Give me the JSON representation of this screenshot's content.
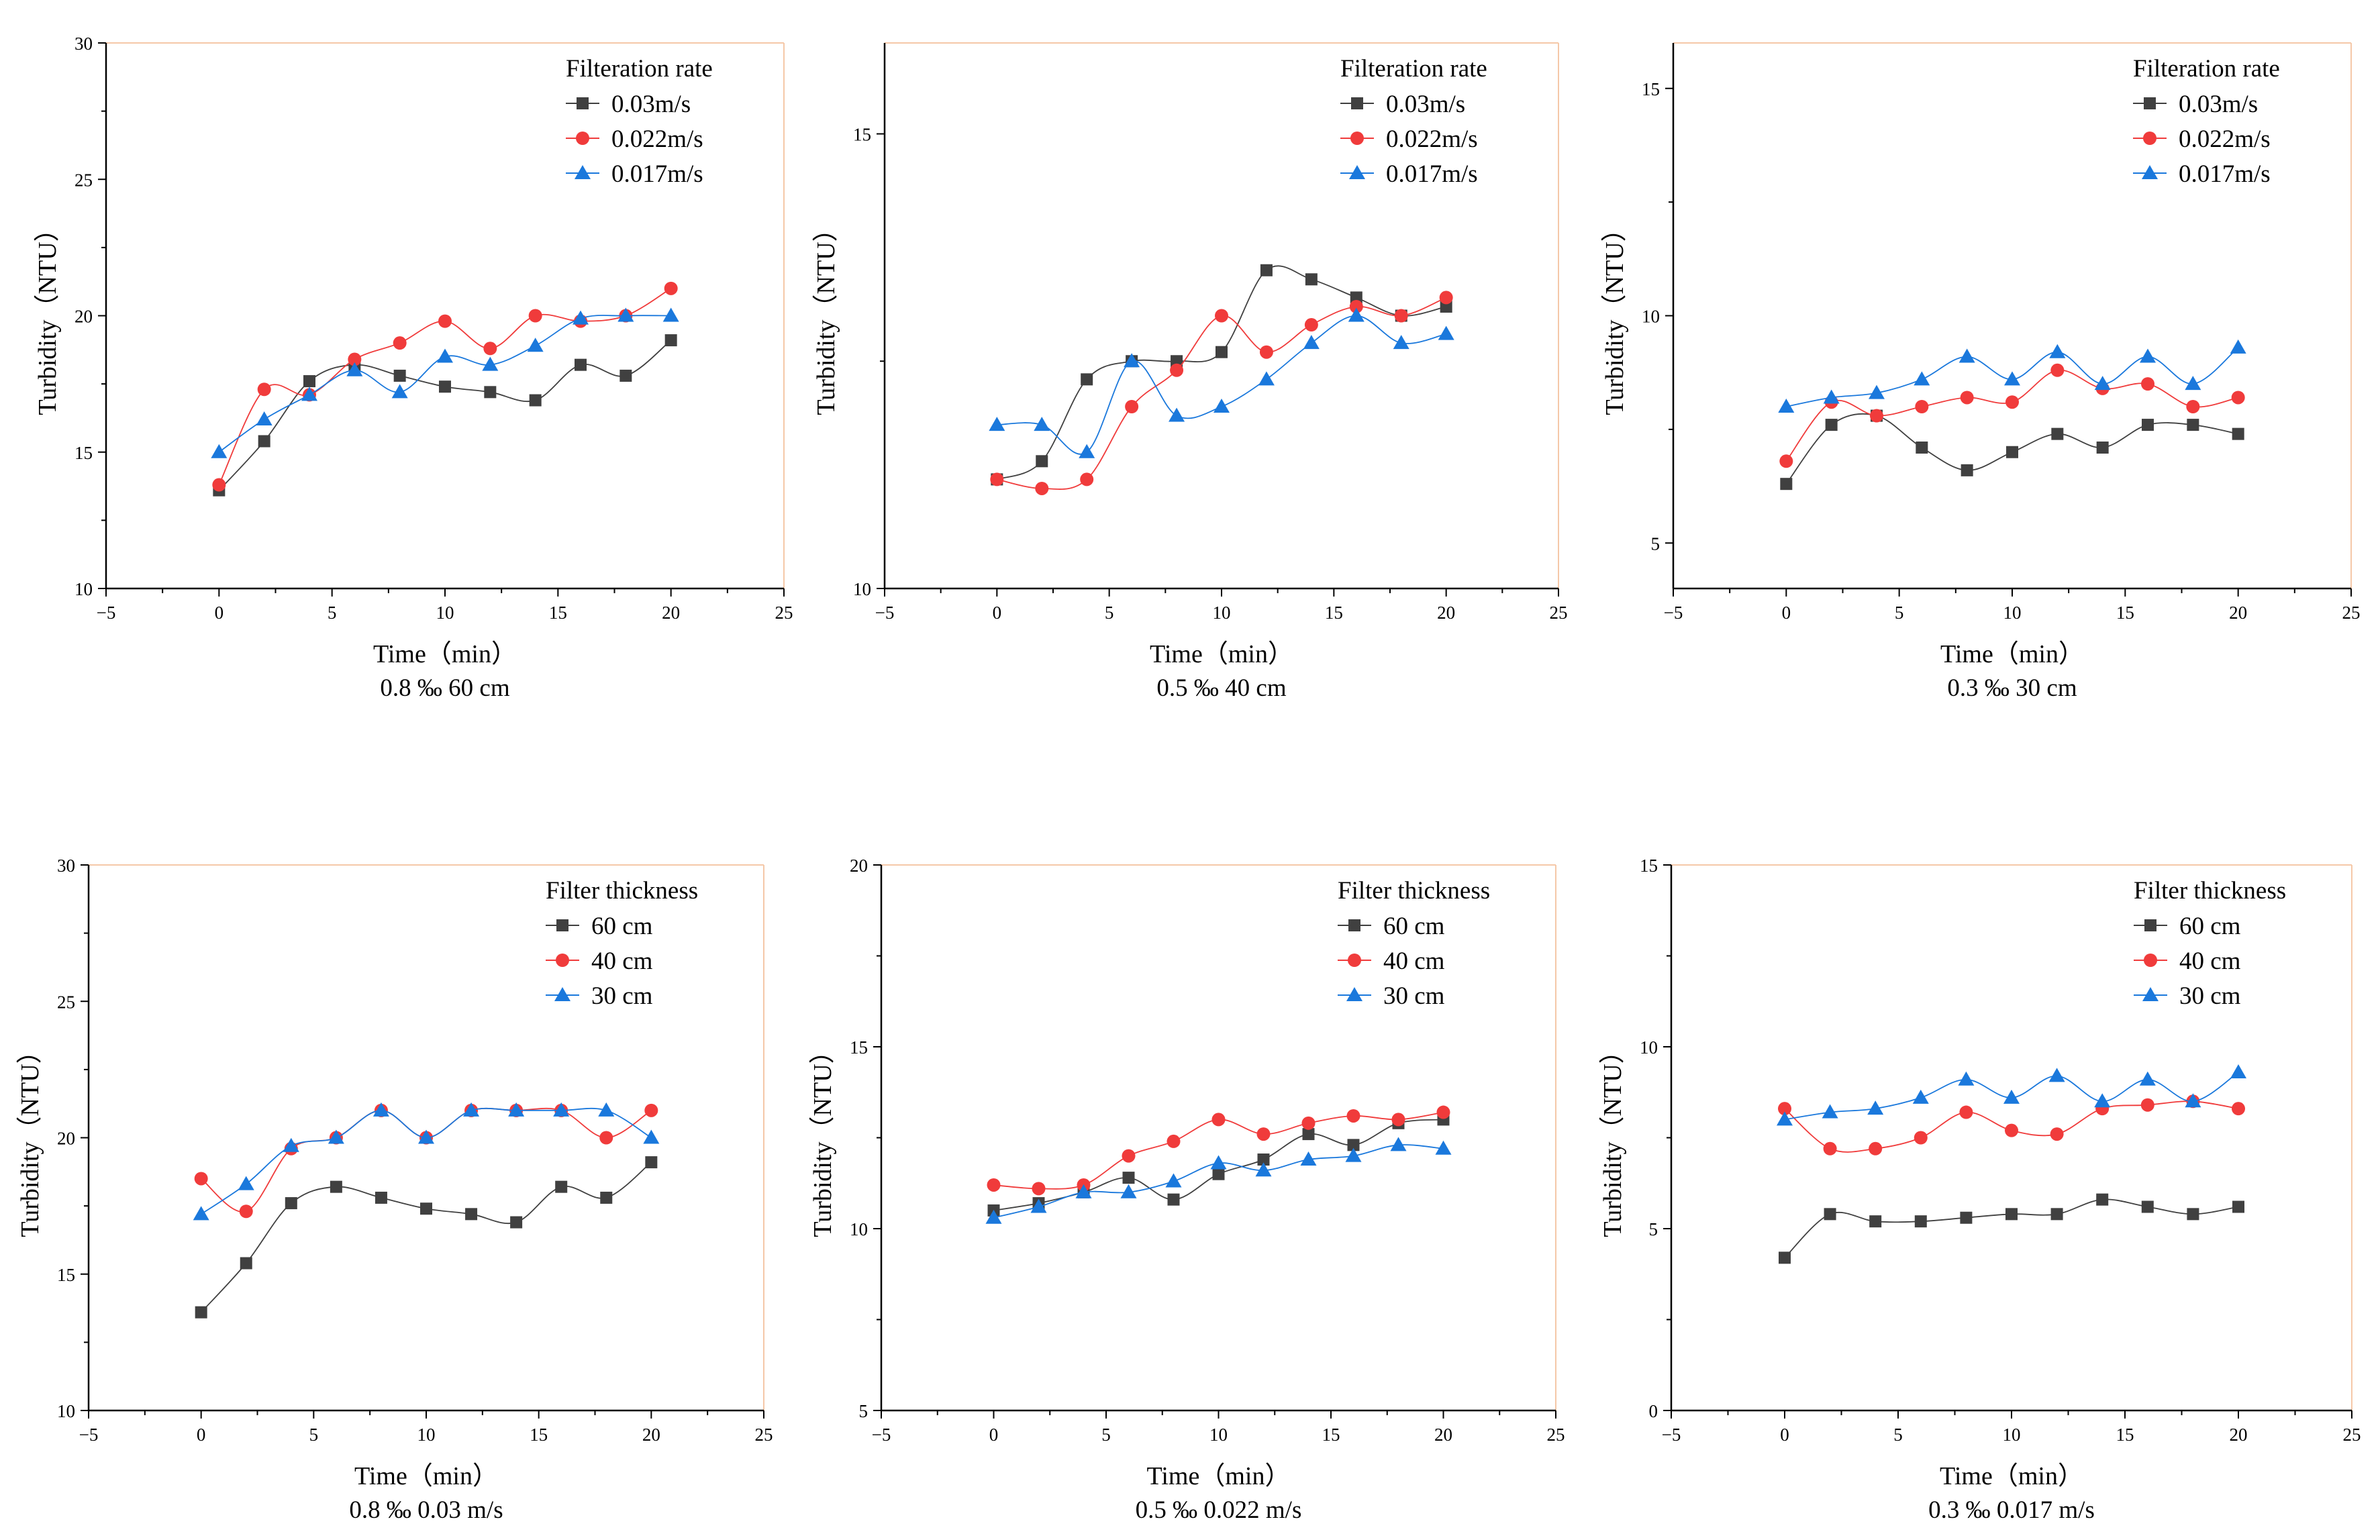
{
  "figure": {
    "palette": {
      "series_1": "#404040",
      "series_2": "#f03b3b",
      "series_3": "#1a78dc",
      "frame_accent": "#f5c8a8"
    }
  },
  "chart_data": [
    {
      "type": "line",
      "caption": "0.8 ‰   60 cm",
      "xlabel": "Time（min）",
      "ylabel": "Turbidity（NTU）",
      "xlim": [
        -5,
        25
      ],
      "ylim": [
        10,
        30
      ],
      "xticks": [
        -5,
        0,
        5,
        10,
        15,
        20,
        25
      ],
      "yticks": [
        10,
        15,
        20,
        25,
        30
      ],
      "legend_title": "Filteration rate",
      "legend_position": "top-right",
      "x": [
        0,
        2,
        4,
        6,
        8,
        10,
        12,
        14,
        16,
        18,
        20
      ],
      "series": [
        {
          "name": "0.03m/s",
          "marker": "square",
          "values": [
            13.6,
            15.4,
            17.6,
            18.2,
            17.8,
            17.4,
            17.2,
            16.9,
            18.2,
            17.8,
            19.1
          ]
        },
        {
          "name": "0.022m/s",
          "marker": "circle",
          "values": [
            13.8,
            17.3,
            17.1,
            18.4,
            19.0,
            19.8,
            18.8,
            20.0,
            19.8,
            20.0,
            21.0
          ]
        },
        {
          "name": "0.017m/s",
          "marker": "triangle",
          "values": [
            15.0,
            16.2,
            17.1,
            18.0,
            17.2,
            18.5,
            18.2,
            18.9,
            19.9,
            20.0,
            20.0
          ]
        }
      ]
    },
    {
      "type": "line",
      "caption": "0.5 ‰   40 cm",
      "xlabel": "Time（min）",
      "ylabel": "Turbidity（NTU）",
      "xlim": [
        -5,
        25
      ],
      "ylim": [
        10,
        16
      ],
      "xticks": [
        -5,
        0,
        5,
        10,
        15,
        20,
        25
      ],
      "yticks": [
        10,
        15
      ],
      "legend_title": "Filteration rate",
      "legend_position": "top-right",
      "x": [
        0,
        2,
        4,
        6,
        8,
        10,
        12,
        14,
        16,
        18,
        20
      ],
      "series": [
        {
          "name": "0.03m/s",
          "marker": "square",
          "values": [
            11.2,
            11.4,
            12.3,
            12.5,
            12.5,
            12.6,
            13.5,
            13.4,
            13.2,
            13.0,
            13.1
          ]
        },
        {
          "name": "0.022m/s",
          "marker": "circle",
          "values": [
            11.2,
            11.1,
            11.2,
            12.0,
            12.4,
            13.0,
            12.6,
            12.9,
            13.1,
            13.0,
            13.2
          ]
        },
        {
          "name": "0.017m/s",
          "marker": "triangle",
          "values": [
            11.8,
            11.8,
            11.5,
            12.5,
            11.9,
            12.0,
            12.3,
            12.7,
            13.0,
            12.7,
            12.8
          ]
        }
      ]
    },
    {
      "type": "line",
      "caption": "0.3 ‰   30 cm",
      "xlabel": "Time（min）",
      "ylabel": "Turbidity（NTU）",
      "xlim": [
        -5,
        25
      ],
      "ylim": [
        4,
        16
      ],
      "xticks": [
        -5,
        0,
        5,
        10,
        15,
        20,
        25
      ],
      "yticks": [
        5,
        10,
        15
      ],
      "legend_title": "Filteration rate",
      "legend_position": "top-right",
      "x": [
        0,
        2,
        4,
        6,
        8,
        10,
        12,
        14,
        16,
        18,
        20
      ],
      "series": [
        {
          "name": "0.03m/s",
          "marker": "square",
          "values": [
            6.3,
            7.6,
            7.8,
            7.1,
            6.6,
            7.0,
            7.4,
            7.1,
            7.6,
            7.6,
            7.4
          ]
        },
        {
          "name": "0.022m/s",
          "marker": "circle",
          "values": [
            6.8,
            8.1,
            7.8,
            8.0,
            8.2,
            8.1,
            8.8,
            8.4,
            8.5,
            8.0,
            8.2
          ]
        },
        {
          "name": "0.017m/s",
          "marker": "triangle",
          "values": [
            8.0,
            8.2,
            8.3,
            8.6,
            9.1,
            8.6,
            9.2,
            8.5,
            9.1,
            8.5,
            9.3
          ]
        }
      ]
    },
    {
      "type": "line",
      "caption": "0.8 ‰   0.03 m/s",
      "xlabel": "Time（min）",
      "ylabel": "Turbidity（NTU）",
      "xlim": [
        -5,
        25
      ],
      "ylim": [
        10,
        30
      ],
      "xticks": [
        -5,
        0,
        5,
        10,
        15,
        20,
        25
      ],
      "yticks": [
        10,
        15,
        20,
        25,
        30
      ],
      "legend_title": "Filter thickness",
      "legend_position": "top-right",
      "x": [
        0,
        2,
        4,
        6,
        8,
        10,
        12,
        14,
        16,
        18,
        20
      ],
      "series": [
        {
          "name": "60 cm",
          "marker": "square",
          "values": [
            13.6,
            15.4,
            17.6,
            18.2,
            17.8,
            17.4,
            17.2,
            16.9,
            18.2,
            17.8,
            19.1
          ]
        },
        {
          "name": "40 cm",
          "marker": "circle",
          "values": [
            18.5,
            17.3,
            19.6,
            20.0,
            21.0,
            20.0,
            21.0,
            21.0,
            21.0,
            20.0,
            21.0
          ]
        },
        {
          "name": "30 cm",
          "marker": "triangle",
          "values": [
            17.2,
            18.3,
            19.7,
            20.0,
            21.0,
            20.0,
            21.0,
            21.0,
            21.0,
            21.0,
            20.0
          ]
        }
      ]
    },
    {
      "type": "line",
      "caption": "0.5 ‰   0.022 m/s",
      "xlabel": "Time（min）",
      "ylabel": "Turbidity（NTU）",
      "xlim": [
        -5,
        25
      ],
      "ylim": [
        5,
        20
      ],
      "xticks": [
        -5,
        0,
        5,
        10,
        15,
        20,
        25
      ],
      "yticks": [
        5,
        10,
        15,
        20
      ],
      "legend_title": "Filter thickness",
      "legend_position": "top-right",
      "x": [
        0,
        2,
        4,
        6,
        8,
        10,
        12,
        14,
        16,
        18,
        20
      ],
      "series": [
        {
          "name": "60 cm",
          "marker": "square",
          "values": [
            10.5,
            10.7,
            11.0,
            11.4,
            10.8,
            11.5,
            11.9,
            12.6,
            12.3,
            12.9,
            13.0
          ]
        },
        {
          "name": "40 cm",
          "marker": "circle",
          "values": [
            11.2,
            11.1,
            11.2,
            12.0,
            12.4,
            13.0,
            12.6,
            12.9,
            13.1,
            13.0,
            13.2
          ]
        },
        {
          "name": "30 cm",
          "marker": "triangle",
          "values": [
            10.3,
            10.6,
            11.0,
            11.0,
            11.3,
            11.8,
            11.6,
            11.9,
            12.0,
            12.3,
            12.2
          ]
        }
      ]
    },
    {
      "type": "line",
      "caption": "0.3 ‰   0.017 m/s",
      "xlabel": "Time（min）",
      "ylabel": "Turbidity（NTU）",
      "xlim": [
        -5,
        25
      ],
      "ylim": [
        0,
        15
      ],
      "xticks": [
        -5,
        0,
        5,
        10,
        15,
        20,
        25
      ],
      "yticks": [
        0,
        5,
        10,
        15
      ],
      "legend_title": "Filter thickness",
      "legend_position": "top-right",
      "x": [
        0,
        2,
        4,
        6,
        8,
        10,
        12,
        14,
        16,
        18,
        20
      ],
      "series": [
        {
          "name": "60 cm",
          "marker": "square",
          "values": [
            4.2,
            5.4,
            5.2,
            5.2,
            5.3,
            5.4,
            5.4,
            5.8,
            5.6,
            5.4,
            5.6
          ]
        },
        {
          "name": "40 cm",
          "marker": "circle",
          "values": [
            8.3,
            7.2,
            7.2,
            7.5,
            8.2,
            7.7,
            7.6,
            8.3,
            8.4,
            8.5,
            8.3
          ]
        },
        {
          "name": "30 cm",
          "marker": "triangle",
          "values": [
            8.0,
            8.2,
            8.3,
            8.6,
            9.1,
            8.6,
            9.2,
            8.5,
            9.1,
            8.5,
            9.3
          ]
        }
      ]
    }
  ]
}
